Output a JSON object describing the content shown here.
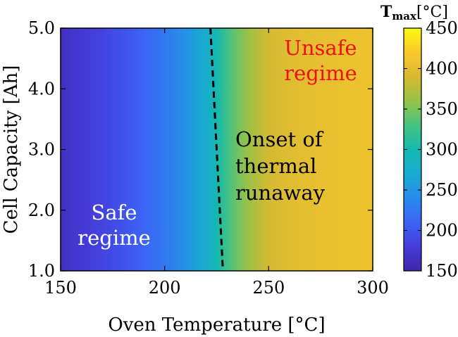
{
  "chart_data": {
    "type": "heatmap",
    "title": "",
    "xlabel": "Oven Temperature [°C]",
    "ylabel": "Cell Capacity [Ah]",
    "xlim": [
      150,
      300
    ],
    "ylim": [
      1.0,
      5.0
    ],
    "x_ticks": [
      150,
      200,
      250,
      300
    ],
    "x_tick_labels": [
      "150",
      "200",
      "250",
      "300"
    ],
    "y_ticks": [
      1.0,
      2.0,
      3.0,
      4.0,
      5.0
    ],
    "y_tick_labels": [
      "1.0",
      "2.0",
      "3.0",
      "4.0",
      "5.0"
    ],
    "colorbar": {
      "label": "T",
      "label_sub": "max",
      "label_unit": "[°C]",
      "range": [
        150,
        450
      ],
      "ticks": [
        150,
        200,
        250,
        300,
        350,
        400,
        450
      ],
      "tick_labels": [
        "150",
        "200",
        "250",
        "300",
        "350",
        "400",
        "450"
      ],
      "colormap": "parula"
    },
    "tmax_profile": {
      "oven_temperature": [
        150,
        160,
        170,
        180,
        190,
        200,
        210,
        215,
        220,
        225,
        230,
        235,
        240,
        245,
        250,
        260,
        270,
        280,
        290,
        300
      ],
      "tmax": [
        165,
        175,
        185,
        197,
        210,
        225,
        245,
        260,
        275,
        298,
        325,
        345,
        362,
        375,
        388,
        397,
        402,
        405,
        407,
        408
      ]
    },
    "onset_line": {
      "label_lines": [
        "Onset of",
        "thermal",
        "runaway"
      ],
      "style": "dashed",
      "color": "#000000",
      "points": [
        {
          "oven_temperature": 222,
          "capacity": 5.0
        },
        {
          "oven_temperature": 228,
          "capacity": 1.0
        }
      ]
    },
    "annotations": [
      {
        "lines": [
          "Safe",
          "regime"
        ],
        "color": "#ffffff"
      },
      {
        "lines": [
          "Unsafe",
          "regime"
        ],
        "color": "#ee1111"
      }
    ]
  }
}
